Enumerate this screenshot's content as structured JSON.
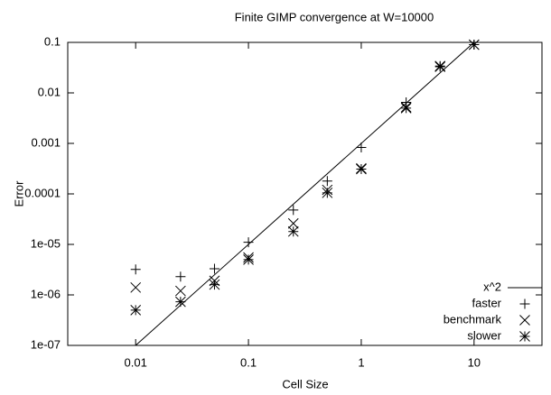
{
  "chart_data": {
    "type": "scatter",
    "title": "Finite GIMP convergence at W=10000",
    "xlabel": "Cell Size",
    "ylabel": "Error",
    "xscale": "log",
    "yscale": "log",
    "xlim": [
      0.0025,
      40
    ],
    "ylim": [
      1e-07,
      0.1
    ],
    "xticks": [
      0.01,
      0.1,
      1,
      10
    ],
    "yticks": [
      {
        "value": 1e-07,
        "label": "1e-07"
      },
      {
        "value": 1e-06,
        "label": "1e-06"
      },
      {
        "value": 1e-05,
        "label": "1e-05"
      },
      0.0001,
      0.001,
      0.01,
      0.1
    ],
    "legend": "lower right",
    "series": [
      {
        "name": "x^2",
        "kind": "line",
        "color": "#000000",
        "x": [
          0.01,
          10
        ],
        "values": [
          1e-07,
          0.1
        ]
      },
      {
        "name": "faster",
        "kind": "points",
        "marker": "+",
        "color": "#000000",
        "x": [
          0.01,
          0.025,
          0.05,
          0.1,
          0.25,
          0.5,
          1,
          2.5,
          5,
          10
        ],
        "values": [
          3.2e-06,
          2.3e-06,
          3.3e-06,
          1.1e-05,
          4.8e-05,
          0.00018,
          0.00083,
          0.0065,
          0.034,
          0.09
        ]
      },
      {
        "name": "benchmark",
        "kind": "points",
        "marker": "x",
        "color": "#000000",
        "x": [
          0.01,
          0.025,
          0.05,
          0.1,
          0.25,
          0.5,
          1,
          2.5,
          5,
          10
        ],
        "values": [
          1.4e-06,
          1.2e-06,
          1.9e-06,
          5.5e-06,
          2.6e-05,
          0.00012,
          0.00032,
          0.0052,
          0.034,
          0.09
        ]
      },
      {
        "name": "slower",
        "kind": "points",
        "marker": "*",
        "color": "#000000",
        "x": [
          0.01,
          0.025,
          0.05,
          0.1,
          0.25,
          0.5,
          1,
          2.5,
          5,
          10
        ],
        "values": [
          5e-07,
          7.3e-07,
          1.6e-06,
          5e-06,
          1.8e-05,
          0.000105,
          0.00031,
          0.005,
          0.033,
          0.09
        ]
      }
    ]
  }
}
